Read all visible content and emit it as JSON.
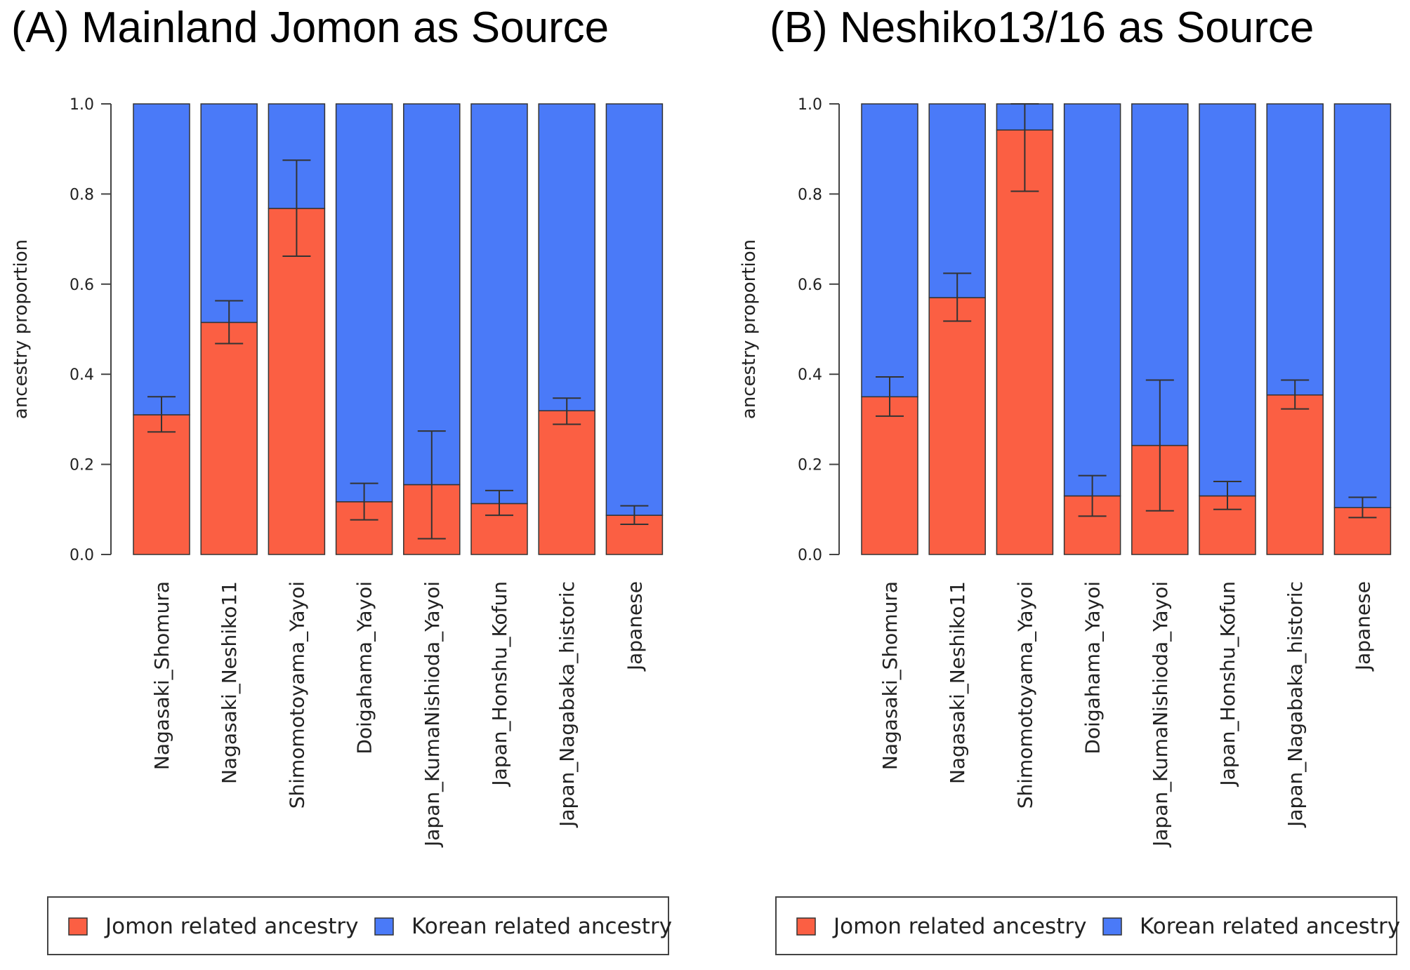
{
  "chart_data": [
    {
      "type": "bar",
      "stacked": true,
      "title": "(A) Mainland Jomon as Source",
      "ylabel": "ancestry proportion",
      "xlabel": "",
      "ylim": [
        0,
        1
      ],
      "yticks": [
        "0.0",
        "0.2",
        "0.4",
        "0.6",
        "0.8",
        "1.0"
      ],
      "categories": [
        "Nagasaki_Shomura",
        "Nagasaki_Neshiko11",
        "Shimomotoyama_Yayoi",
        "Doigahama_Yayoi",
        "Japan_KumaNishioda_Yayoi",
        "Japan_Honshu_Kofun",
        "Japan_Nagabaka_historic",
        "Japanese"
      ],
      "series": [
        {
          "name": "Jomon related ancestry",
          "color": "#fb5f43",
          "values": [
            0.31,
            0.515,
            0.768,
            0.117,
            0.155,
            0.113,
            0.319,
            0.087
          ]
        },
        {
          "name": "Korean related ancestry",
          "color": "#4a7af8",
          "values": [
            0.69,
            0.485,
            0.232,
            0.883,
            0.845,
            0.887,
            0.681,
            0.913
          ]
        }
      ],
      "error_bars": [
        {
          "low": 0.272,
          "high": 0.35
        },
        {
          "low": 0.468,
          "high": 0.563
        },
        {
          "low": 0.662,
          "high": 0.875
        },
        {
          "low": 0.077,
          "high": 0.158
        },
        {
          "low": 0.035,
          "high": 0.274
        },
        {
          "low": 0.087,
          "high": 0.142
        },
        {
          "low": 0.289,
          "high": 0.347
        },
        {
          "low": 0.067,
          "high": 0.108
        }
      ],
      "legend": {
        "position": "bottom",
        "entries": [
          "Jomon related ancestry",
          "Korean related ancestry"
        ]
      }
    },
    {
      "type": "bar",
      "stacked": true,
      "title": "(B) Neshiko13/16 as Source",
      "ylabel": "ancestry proportion",
      "xlabel": "",
      "ylim": [
        0,
        1
      ],
      "yticks": [
        "0.0",
        "0.2",
        "0.4",
        "0.6",
        "0.8",
        "1.0"
      ],
      "categories": [
        "Nagasaki_Shomura",
        "Nagasaki_Neshiko11",
        "Shimomotoyama_Yayoi",
        "Doigahama_Yayoi",
        "Japan_KumaNishioda_Yayoi",
        "Japan_Honshu_Kofun",
        "Japan_Nagabaka_historic",
        "Japanese"
      ],
      "series": [
        {
          "name": "Jomon related ancestry",
          "color": "#fb5f43",
          "values": [
            0.35,
            0.57,
            0.942,
            0.13,
            0.242,
            0.13,
            0.354,
            0.104
          ]
        },
        {
          "name": "Korean related ancestry",
          "color": "#4a7af8",
          "values": [
            0.65,
            0.43,
            0.058,
            0.87,
            0.758,
            0.87,
            0.646,
            0.896
          ]
        }
      ],
      "error_bars": [
        {
          "low": 0.307,
          "high": 0.394
        },
        {
          "low": 0.518,
          "high": 0.624
        },
        {
          "low": 0.806,
          "high": 1.0
        },
        {
          "low": 0.085,
          "high": 0.175
        },
        {
          "low": 0.097,
          "high": 0.387
        },
        {
          "low": 0.1,
          "high": 0.162
        },
        {
          "low": 0.323,
          "high": 0.387
        },
        {
          "low": 0.082,
          "high": 0.127
        }
      ],
      "legend": {
        "position": "bottom",
        "entries": [
          "Jomon related ancestry",
          "Korean related ancestry"
        ]
      }
    }
  ]
}
